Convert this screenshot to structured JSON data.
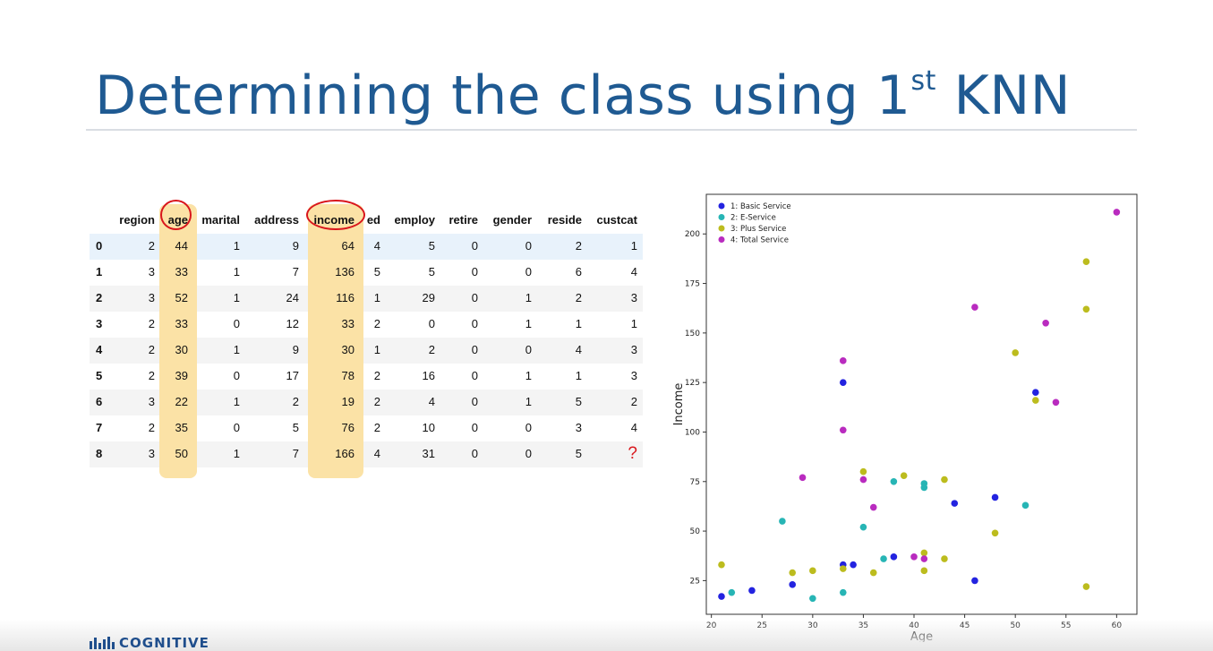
{
  "slide": {
    "title_main": "Determining the class using 1",
    "title_sup": "st",
    "title_tail": " KNN"
  },
  "table": {
    "columns": [
      "region",
      "age",
      "marital",
      "address",
      "income",
      "ed",
      "employ",
      "retire",
      "gender",
      "reside",
      "custcat"
    ],
    "rows": [
      {
        "index": "0",
        "values": [
          "2",
          "44",
          "1",
          "9",
          "64",
          "4",
          "5",
          "0",
          "0",
          "2",
          "1"
        ]
      },
      {
        "index": "1",
        "values": [
          "3",
          "33",
          "1",
          "7",
          "136",
          "5",
          "5",
          "0",
          "0",
          "6",
          "4"
        ]
      },
      {
        "index": "2",
        "values": [
          "3",
          "52",
          "1",
          "24",
          "116",
          "1",
          "29",
          "0",
          "1",
          "2",
          "3"
        ]
      },
      {
        "index": "3",
        "values": [
          "2",
          "33",
          "0",
          "12",
          "33",
          "2",
          "0",
          "0",
          "1",
          "1",
          "1"
        ]
      },
      {
        "index": "4",
        "values": [
          "2",
          "30",
          "1",
          "9",
          "30",
          "1",
          "2",
          "0",
          "0",
          "4",
          "3"
        ]
      },
      {
        "index": "5",
        "values": [
          "2",
          "39",
          "0",
          "17",
          "78",
          "2",
          "16",
          "0",
          "1",
          "1",
          "3"
        ]
      },
      {
        "index": "6",
        "values": [
          "3",
          "22",
          "1",
          "2",
          "19",
          "2",
          "4",
          "0",
          "1",
          "5",
          "2"
        ]
      },
      {
        "index": "7",
        "values": [
          "2",
          "35",
          "0",
          "5",
          "76",
          "2",
          "10",
          "0",
          "0",
          "3",
          "4"
        ]
      },
      {
        "index": "8",
        "values": [
          "3",
          "50",
          "1",
          "7",
          "166",
          "4",
          "31",
          "0",
          "0",
          "5",
          "?"
        ]
      }
    ],
    "highlight_color": "#fbe2a6",
    "circle_color": "#d9161c"
  },
  "chart_data": {
    "type": "scatter",
    "xlabel": "Age",
    "ylabel": "Income",
    "xlim": [
      19.5,
      62
    ],
    "ylim": [
      8,
      220
    ],
    "xticks": [
      20,
      25,
      30,
      35,
      40,
      45,
      50,
      55,
      60
    ],
    "yticks": [
      25,
      50,
      75,
      100,
      125,
      150,
      175,
      200
    ],
    "legend_position": "top-left",
    "series": [
      {
        "name": "1: Basic Service",
        "color": "#2323e0",
        "points": [
          [
            21,
            17
          ],
          [
            24,
            20
          ],
          [
            28,
            23
          ],
          [
            33,
            33
          ],
          [
            34,
            33
          ],
          [
            38,
            37
          ],
          [
            33,
            125
          ],
          [
            44,
            64
          ],
          [
            46,
            25
          ],
          [
            48,
            67
          ],
          [
            52,
            120
          ]
        ]
      },
      {
        "name": "2: E-Service",
        "color": "#27b5b5",
        "points": [
          [
            22,
            19
          ],
          [
            27,
            55
          ],
          [
            30,
            16
          ],
          [
            33,
            19
          ],
          [
            35,
            52
          ],
          [
            37,
            36
          ],
          [
            38,
            75
          ],
          [
            41,
            74
          ],
          [
            41,
            72
          ],
          [
            51,
            63
          ]
        ]
      },
      {
        "name": "3: Plus Service",
        "color": "#bcbc1e",
        "points": [
          [
            21,
            33
          ],
          [
            28,
            29
          ],
          [
            30,
            30
          ],
          [
            33,
            31
          ],
          [
            35,
            80
          ],
          [
            36,
            29
          ],
          [
            39,
            78
          ],
          [
            41,
            39
          ],
          [
            41,
            30
          ],
          [
            43,
            76
          ],
          [
            43,
            36
          ],
          [
            48,
            49
          ],
          [
            50,
            140
          ],
          [
            52,
            116
          ],
          [
            57,
            186
          ],
          [
            57,
            162
          ],
          [
            57,
            22
          ]
        ]
      },
      {
        "name": "4: Total Service",
        "color": "#b92bbf",
        "points": [
          [
            29,
            77
          ],
          [
            33,
            136
          ],
          [
            33,
            101
          ],
          [
            35,
            76
          ],
          [
            36,
            62
          ],
          [
            40,
            37
          ],
          [
            41,
            36
          ],
          [
            46,
            163
          ],
          [
            53,
            155
          ],
          [
            54,
            115
          ],
          [
            60,
            211
          ]
        ]
      }
    ]
  },
  "footer": {
    "logo_text": "COGNITIVE"
  }
}
